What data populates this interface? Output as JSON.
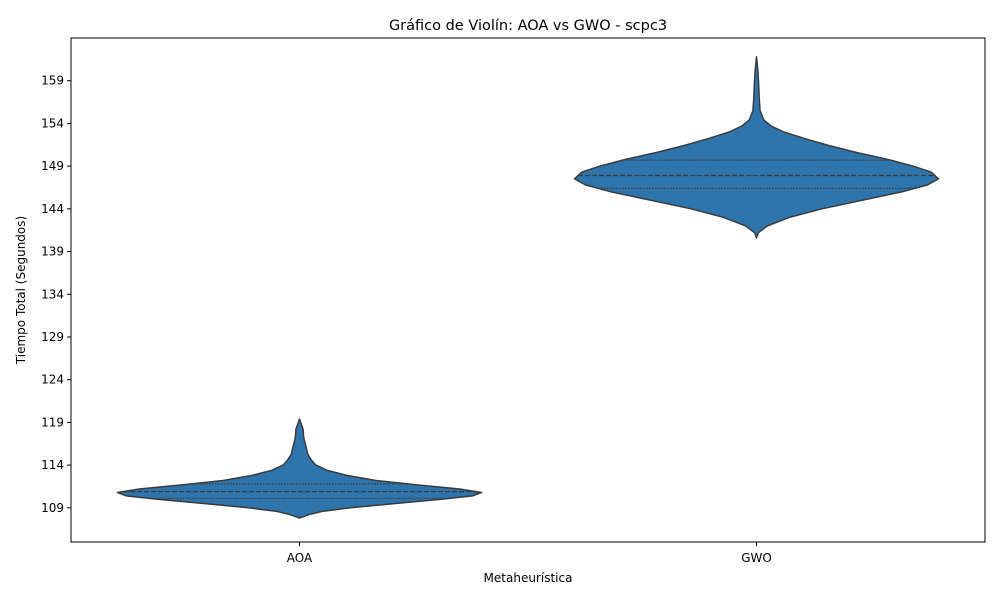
{
  "chart_data": {
    "type": "violin",
    "title": "Gráfico de Violín: AOA vs GWO - scpc3",
    "xlabel": "Metaheurística",
    "ylabel": "Tiempo Total (Segundos)",
    "categories": [
      "AOA",
      "GWO"
    ],
    "y_ticks": [
      109,
      114,
      119,
      124,
      129,
      134,
      139,
      144,
      149,
      154,
      159
    ],
    "ylim": [
      105,
      164
    ],
    "grid": false,
    "legend": "none",
    "fill_color": "#2e74ad",
    "edge_color": "#3b3b3b",
    "violins": [
      {
        "category": "AOA",
        "min": 107.8,
        "max": 119.4,
        "q1": 110.1,
        "median": 110.9,
        "q3": 111.8,
        "density": [
          [
            107.8,
            0.0
          ],
          [
            108.2,
            0.05
          ],
          [
            108.6,
            0.13
          ],
          [
            109.0,
            0.28
          ],
          [
            109.5,
            0.52
          ],
          [
            110.0,
            0.78
          ],
          [
            110.4,
            0.95
          ],
          [
            110.8,
            1.0
          ],
          [
            111.2,
            0.88
          ],
          [
            111.7,
            0.64
          ],
          [
            112.2,
            0.42
          ],
          [
            112.8,
            0.26
          ],
          [
            113.4,
            0.15
          ],
          [
            114.0,
            0.09
          ],
          [
            114.6,
            0.065
          ],
          [
            115.3,
            0.045
          ],
          [
            116.2,
            0.035
          ],
          [
            117.0,
            0.025
          ],
          [
            117.5,
            0.022
          ],
          [
            118.2,
            0.02
          ],
          [
            118.8,
            0.01
          ],
          [
            119.4,
            0.0
          ]
        ]
      },
      {
        "category": "GWO",
        "min": 140.6,
        "max": 161.8,
        "q1": 146.4,
        "median": 147.9,
        "q3": 149.7,
        "density": [
          [
            140.6,
            0.0
          ],
          [
            141.2,
            0.01
          ],
          [
            142.0,
            0.06
          ],
          [
            143.0,
            0.18
          ],
          [
            144.0,
            0.36
          ],
          [
            145.0,
            0.58
          ],
          [
            146.0,
            0.8
          ],
          [
            146.8,
            0.94
          ],
          [
            147.5,
            1.0
          ],
          [
            148.3,
            0.96
          ],
          [
            149.0,
            0.86
          ],
          [
            149.8,
            0.72
          ],
          [
            150.6,
            0.55
          ],
          [
            151.4,
            0.4
          ],
          [
            152.2,
            0.27
          ],
          [
            153.0,
            0.15
          ],
          [
            153.7,
            0.08
          ],
          [
            154.4,
            0.04
          ],
          [
            155.5,
            0.02
          ],
          [
            157.0,
            0.015
          ],
          [
            158.5,
            0.012
          ],
          [
            160.0,
            0.008
          ],
          [
            161.0,
            0.004
          ],
          [
            161.8,
            0.0
          ]
        ]
      }
    ]
  }
}
